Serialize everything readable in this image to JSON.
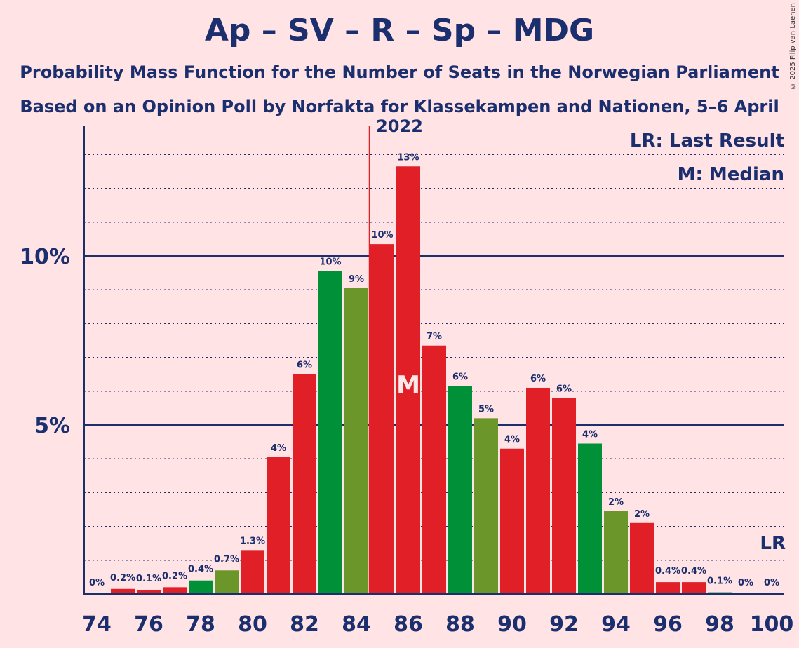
{
  "header": {
    "title": "Ap – SV – R – Sp – MDG",
    "subtitle1": "Probability Mass Function for the Number of Seats in the Norwegian Parliament",
    "subtitle2": "Based on an Opinion Poll by Norfakta for Klassekampen and Nationen, 5–6 April 2022",
    "copyright": "© 2025 Filip van Laenen"
  },
  "legend": {
    "lr": "LR: Last Result",
    "median": "M: Median"
  },
  "markers": {
    "median_label": "M",
    "lr_label": "LR"
  },
  "colors": {
    "background": "#FFE3E5",
    "text": "#1B2F6E",
    "red": "#E01F27",
    "green": "#009037",
    "olive": "#6A962A",
    "last_result_line": "#E01F27"
  },
  "chart_data": {
    "type": "bar",
    "x": [
      74,
      75,
      76,
      77,
      78,
      79,
      80,
      81,
      82,
      83,
      84,
      85,
      86,
      87,
      88,
      89,
      90,
      91,
      92,
      93,
      94,
      95,
      96,
      97,
      98,
      99,
      100
    ],
    "values": [
      0,
      0.15,
      0.12,
      0.2,
      0.4,
      0.7,
      1.3,
      4.05,
      6.5,
      9.55,
      9.05,
      10.35,
      12.65,
      7.35,
      6.15,
      5.2,
      4.3,
      6.1,
      5.8,
      4.45,
      2.45,
      2.1,
      0.35,
      0.35,
      0.05,
      0,
      0
    ],
    "labels": [
      "0%",
      "0.2%",
      "0.1%",
      "0.2%",
      "0.4%",
      "0.7%",
      "1.3%",
      "4%",
      "6%",
      "10%",
      "9%",
      "10%",
      "13%",
      "7%",
      "6%",
      "5%",
      "4%",
      "6%",
      "6%",
      "4%",
      "2%",
      "2%",
      "0.4%",
      "0.4%",
      "0.1%",
      "0%",
      "0%"
    ],
    "bar_colors": [
      "#E01F27",
      "#E01F27",
      "#E01F27",
      "#E01F27",
      "#009037",
      "#6A962A",
      "#E01F27",
      "#E01F27",
      "#E01F27",
      "#009037",
      "#6A962A",
      "#E01F27",
      "#E01F27",
      "#E01F27",
      "#009037",
      "#6A962A",
      "#E01F27",
      "#E01F27",
      "#E01F27",
      "#009037",
      "#6A962A",
      "#E01F27",
      "#E01F27",
      "#E01F27",
      "#009037",
      "#6A962A",
      "#E01F27"
    ],
    "x_ticks": [
      74,
      76,
      78,
      80,
      82,
      84,
      86,
      88,
      90,
      92,
      94,
      96,
      98,
      100
    ],
    "y_ticks": [
      {
        "value": 5,
        "label": "5%"
      },
      {
        "value": 10,
        "label": "10%"
      }
    ],
    "y_minor_step": 1,
    "ylim": [
      0,
      13.8
    ],
    "xlim": [
      73.5,
      100.5
    ],
    "median": 86,
    "last_result": 84.5,
    "grid": true,
    "legend_position": "top-right"
  }
}
